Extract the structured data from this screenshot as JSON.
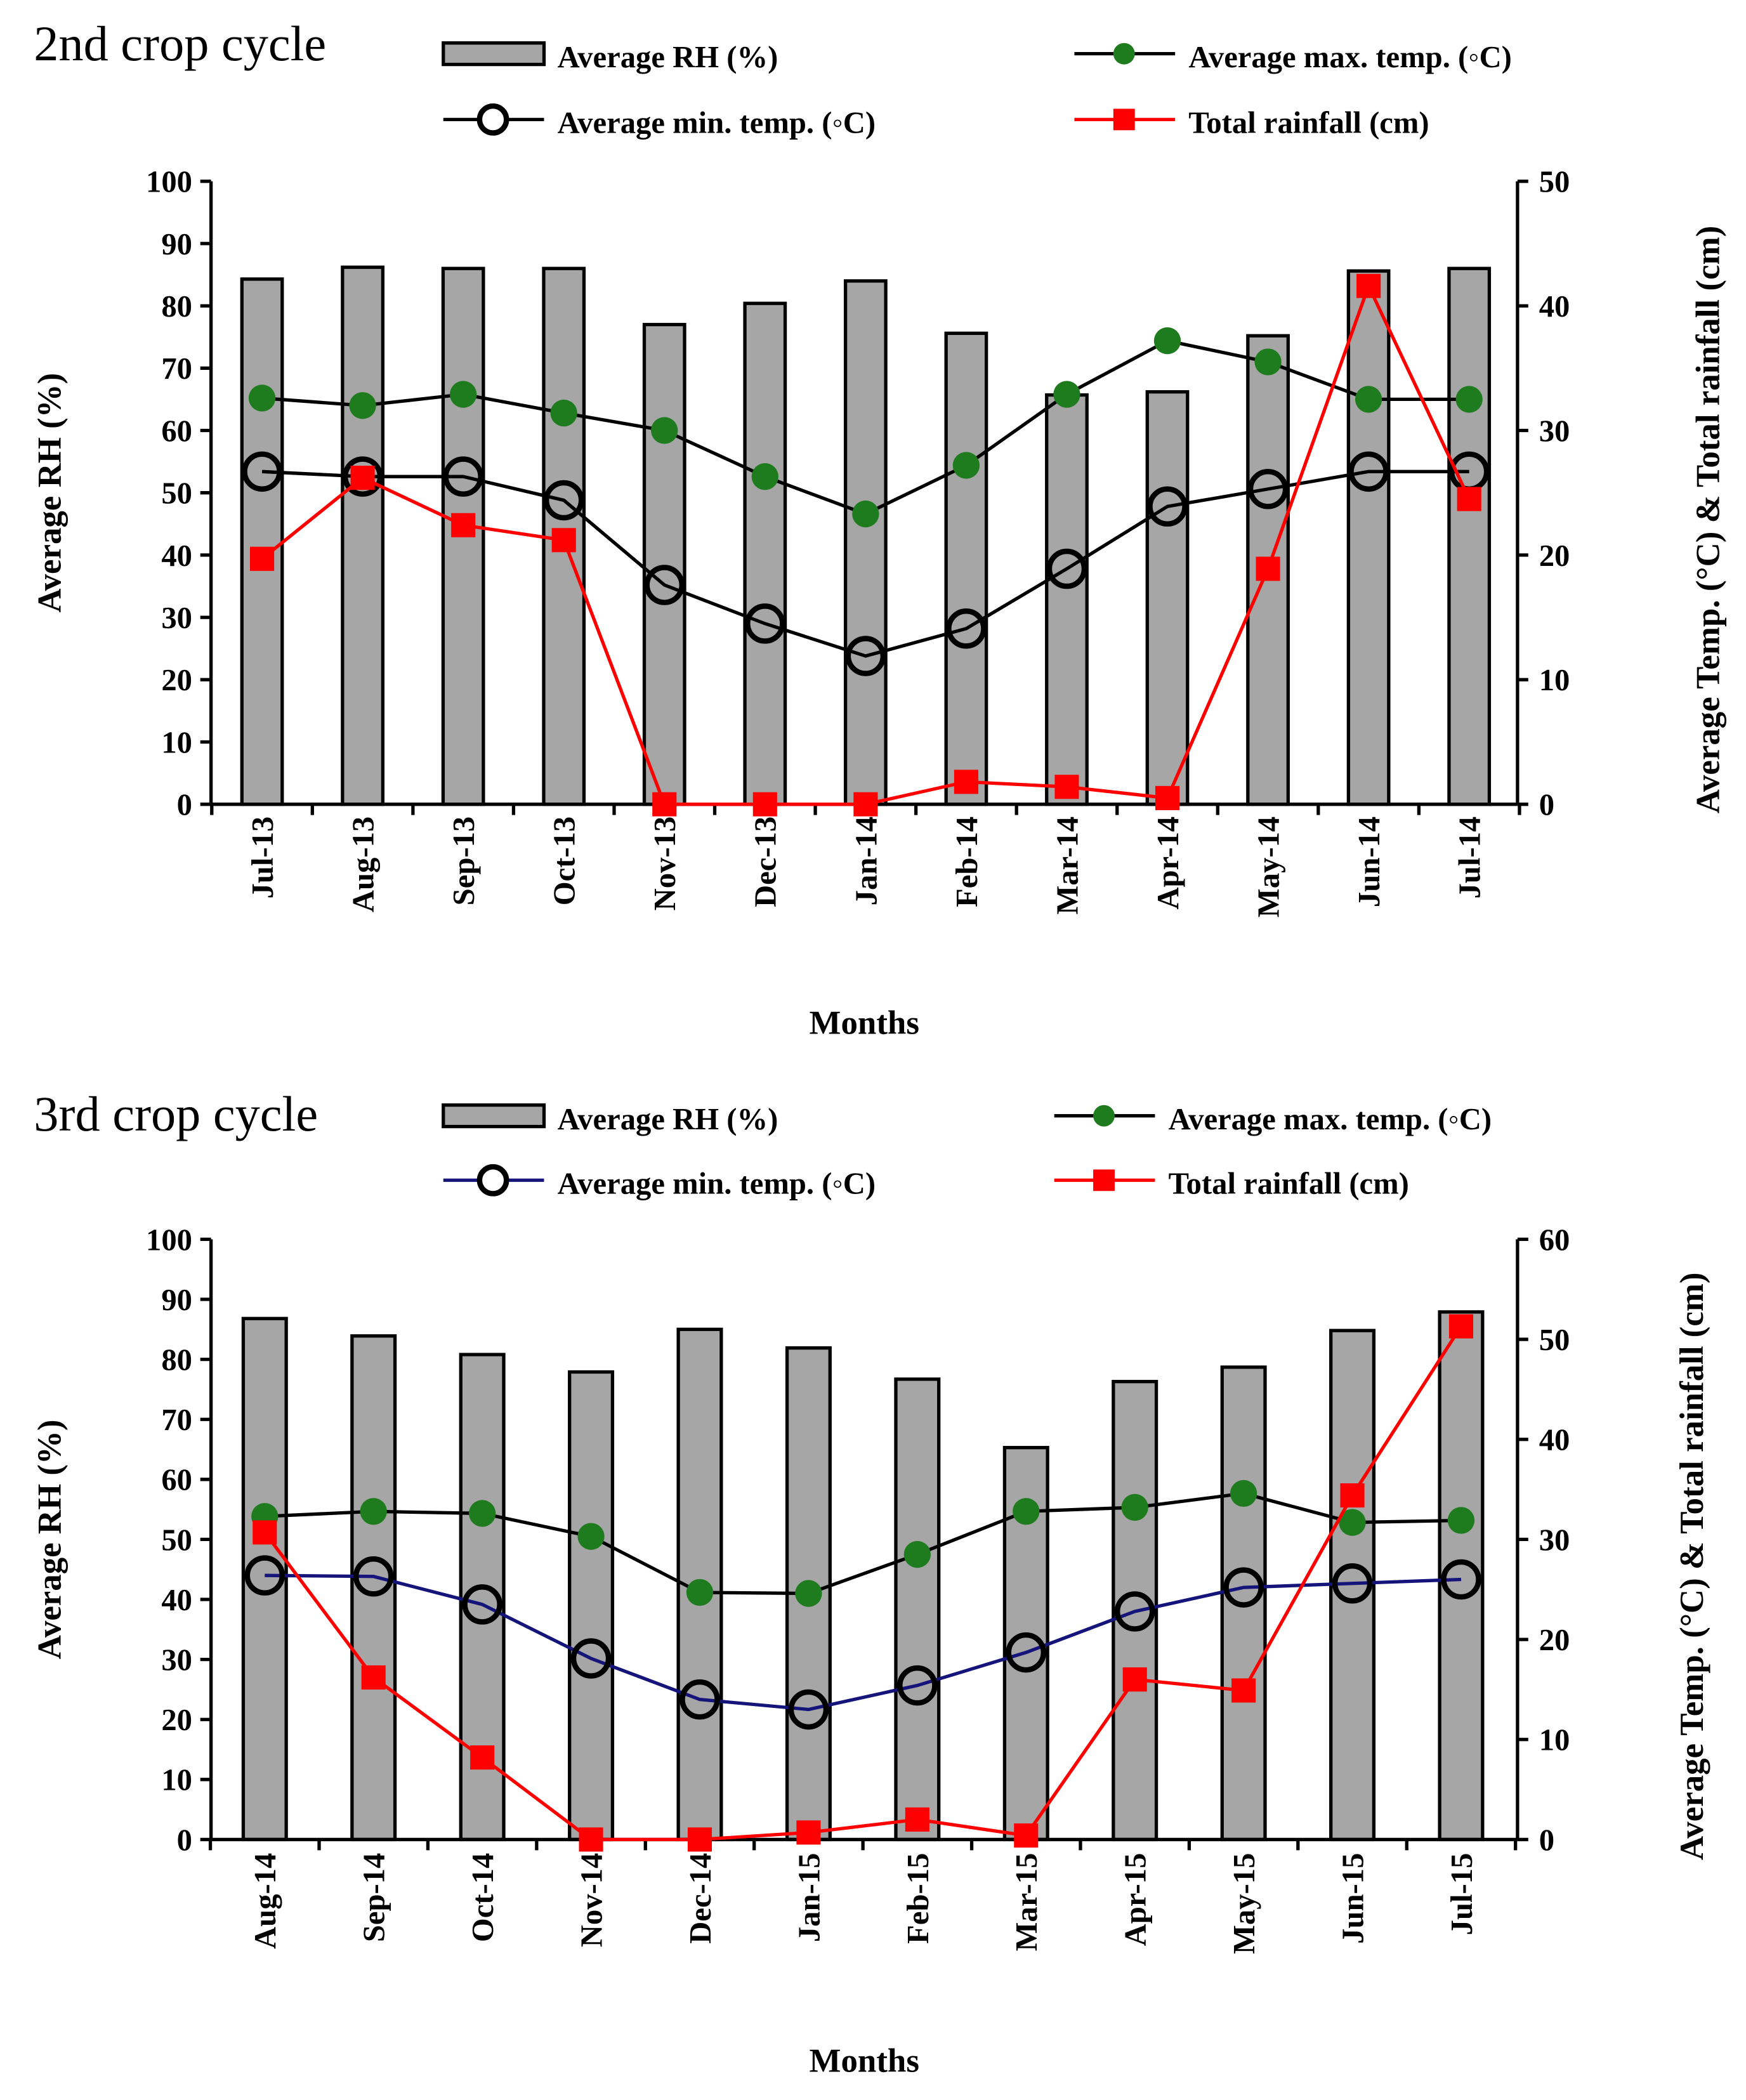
{
  "colors": {
    "bar": "#a6a6a6",
    "max_marker": "#1e7b1e",
    "rain": "#ff0000",
    "line": "#000000",
    "min_line_2": "#14147a"
  },
  "chart_data": [
    {
      "type": "bar+line",
      "title": "2nd crop cycle",
      "xlabel": "Months",
      "ylabel": "Average RH (%)",
      "y2label": "Average Temp. (°C) & Total rainfall (cm)",
      "ylim": [
        0,
        100
      ],
      "y2lim": [
        0,
        50
      ],
      "yticks": [
        "0",
        "10",
        "20",
        "30",
        "40",
        "50",
        "60",
        "70",
        "80",
        "90",
        "100"
      ],
      "y2ticks": [
        "0",
        "10",
        "20",
        "30",
        "40",
        "50"
      ],
      "categories": [
        "Jul-13",
        "Aug-13",
        "Sep-13",
        "Oct-13",
        "Nov-13",
        "Dec-13",
        "Jan-14",
        "Feb-14",
        "Mar-14",
        "Apr-14",
        "May-14",
        "Jun-14",
        "Jul-14"
      ],
      "series": [
        {
          "name": "Average RH (%)",
          "axis": "left",
          "kind": "bar",
          "values": [
            84.3,
            86.2,
            86,
            86,
            77,
            80.4,
            84,
            75.6,
            65.7,
            66.2,
            75.2,
            85.6,
            86
          ]
        },
        {
          "name": "Average max. temp. (◦C)",
          "axis": "right",
          "kind": "max",
          "values": [
            32.6,
            32,
            32.9,
            31.4,
            30,
            26.3,
            23.3,
            27.2,
            32.9,
            37.2,
            35.5,
            32.5,
            32.5
          ]
        },
        {
          "name": "Average min. temp.  (◦C)",
          "axis": "right",
          "kind": "min",
          "values": [
            26.7,
            26.3,
            26.3,
            24.4,
            17.6,
            14.5,
            11.9,
            14.1,
            18.9,
            23.9,
            25.3,
            26.7,
            26.7
          ]
        },
        {
          "name": "Total rainfall (cm)",
          "axis": "right",
          "kind": "rain",
          "values": [
            19.7,
            26.2,
            22.4,
            21.2,
            0,
            0,
            0,
            1.8,
            1.4,
            0.5,
            18.9,
            41.6,
            24.5
          ]
        }
      ]
    },
    {
      "type": "bar+line",
      "title": "3rd crop cycle",
      "xlabel": "Months",
      "ylabel": "Average RH (%)",
      "y2label": "Average Temp. (°C) & Total rainfall (cm)",
      "ylim": [
        0,
        100
      ],
      "y2lim": [
        0,
        60
      ],
      "yticks": [
        "0",
        "10",
        "20",
        "30",
        "40",
        "50",
        "60",
        "70",
        "80",
        "90",
        "100"
      ],
      "y2ticks": [
        "0",
        "10",
        "20",
        "30",
        "40",
        "50",
        "60"
      ],
      "categories": [
        "Aug-14",
        "Sep-14",
        "Oct-14",
        "Nov-14",
        "Dec-14",
        "Jan-15",
        "Feb-15",
        "Mar-15",
        "Apr-15",
        "May-15",
        "Jun-15",
        "Jul-15"
      ],
      "series": [
        {
          "name": "Average RH (%)",
          "axis": "left",
          "kind": "bar",
          "values": [
            86.8,
            83.9,
            80.8,
            77.9,
            85,
            81.9,
            76.7,
            65.3,
            76.3,
            78.7,
            84.8,
            87.9
          ]
        },
        {
          "name": "Average max. temp. (◦C)",
          "axis": "right",
          "kind": "max",
          "values": [
            32.3,
            32.8,
            32.6,
            30.3,
            24.7,
            24.6,
            28.5,
            32.8,
            33.2,
            34.6,
            31.7,
            31.9
          ]
        },
        {
          "name": "Average min. temp.  (◦C)",
          "axis": "right",
          "kind": "min",
          "values": [
            26.4,
            26.3,
            23.5,
            18.1,
            14,
            13,
            15.4,
            18.7,
            22.8,
            25.2,
            25.6,
            26
          ]
        },
        {
          "name": "Total rainfall (cm)",
          "axis": "right",
          "kind": "rain",
          "values": [
            30.7,
            16.2,
            8.2,
            0,
            0,
            0.7,
            2,
            0.4,
            16,
            14.9,
            34.4,
            51.3
          ]
        }
      ]
    }
  ]
}
